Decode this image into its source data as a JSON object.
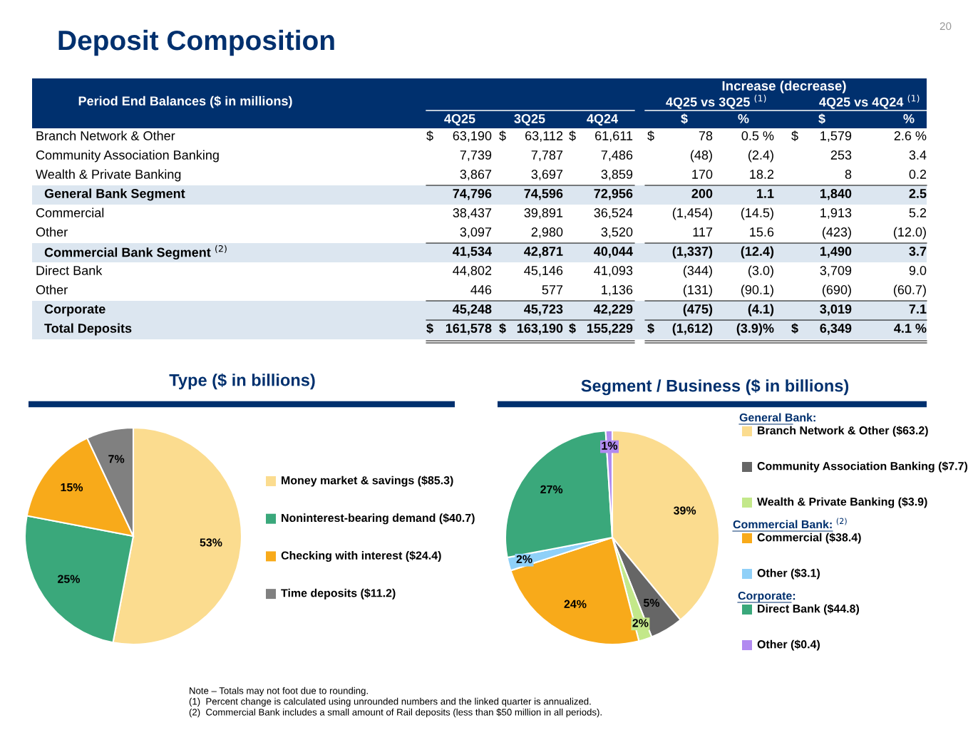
{
  "chart_data": [
    {
      "type": "other",
      "title": "Deposit Composition",
      "subtitle": "Period End Balances ($ in millions)",
      "categories": [
        "4Q25",
        "3Q25",
        "4Q24",
        "$",
        "%",
        "$",
        "%"
      ],
      "y_categories": [
        "Branch Network & Other",
        "Community Association Banking",
        "Wealth & Private Banking",
        "General Bank Segment",
        "Commercial",
        "Other",
        "Commercial Bank Segment $^{(2)}$",
        "Direct Bank",
        "Other",
        "Corporate",
        "Total Deposits"
      ],
      "cell_labels": [
        [
          "$ 63,190",
          "$ 63,112",
          "$ 61,611",
          "$ 78",
          "0.5 %",
          "$ 1,579",
          "2.6 %"
        ],
        [
          "7,739",
          "7,787",
          "7,486",
          "(48)",
          "(2.4)",
          "253",
          "3.4"
        ],
        [
          "3,867",
          "3,697",
          "3,859",
          "170",
          "18.2",
          "8",
          "0.2"
        ],
        [
          "74,796",
          "74,596",
          "72,956",
          "200",
          "1.1",
          "1,840",
          "2.5"
        ],
        [
          "38,437",
          "39,891",
          "36,524",
          "(1,454)",
          "(14.5)",
          "1,913",
          "5.2"
        ],
        [
          "3,097",
          "2,980",
          "3,520",
          "117",
          "15.6",
          "(423)",
          "(12.0)"
        ],
        [
          "41,534",
          "42,871",
          "40,044",
          "(1,337)",
          "(12.4)",
          "1,490",
          "3.7"
        ],
        [
          "44,802",
          "45,146",
          "41,093",
          "(344)",
          "(3.0)",
          "3,709",
          "9.0"
        ],
        [
          "446",
          "577",
          "1,136",
          "(131)",
          "(90.1)",
          "(690)",
          "(60.7)"
        ],
        [
          "45,248",
          "45,723",
          "42,229",
          "(475)",
          "(4.1)",
          "3,019",
          "7.1"
        ],
        [
          "$ 161,578",
          "$ 163,190",
          "$ 155,229",
          "$ (1,612)",
          "(3.9)%",
          "$ 6,349",
          "4.1 %"
        ]
      ],
      "annotations": [
        "Increase (decrease)",
        "4Q25 vs 3Q25 $^{(1)}$",
        "4Q25 vs 4Q24 $^{(1)}$",
        "20",
        "Note – Totals may not foot due to rounding.",
        "(1)  Percent change is calculated using unrounded numbers and the linked quarter is annualized.",
        "(2)  Commercial Bank includes a small amount of Rail deposits (less than $50 million in all periods)."
      ]
    },
    {
      "type": "pie",
      "title": "Type ($ in billions)",
      "categories": [
        "Money market & savings ($85.3)",
        "Noninterest-bearing demand ($40.7)",
        "Checking with interest ($24.4)",
        "Time deposits ($11.2)"
      ],
      "values": [
        53,
        25,
        15,
        7
      ],
      "colors": [
        "#fbdc8f",
        "#3aa87b",
        "#f8aa1a",
        "#808080"
      ],
      "value_labels": [
        "53%",
        "25%",
        "15%",
        "7%"
      ],
      "legend": "right"
    },
    {
      "type": "pie",
      "title": "Segment / Business ($ in billions)",
      "categories": [
        "Branch Network & Other ($63.2)",
        "Community Association Banking ($7.7)",
        "Wealth & Private Banking ($3.9)",
        "Commercial ($38.4)",
        "Other ($3.1)",
        "Direct Bank ($44.8)",
        "Other ($0.4)"
      ],
      "values": [
        39,
        5,
        2,
        24,
        2,
        27,
        1
      ],
      "colors": [
        "#fbdc8f",
        "#666666",
        "#c3e88a",
        "#f8aa1a",
        "#8fd0f8",
        "#3aa87b",
        "#b18af0"
      ],
      "value_labels": [
        "39%",
        "5%",
        "2%",
        "24%",
        "2%",
        "27%",
        "1%"
      ],
      "legend": "right",
      "annotations": [
        "General Bank:",
        "Commercial Bank: $^{(2)}$",
        "Corporate:"
      ]
    }
  ]
}
